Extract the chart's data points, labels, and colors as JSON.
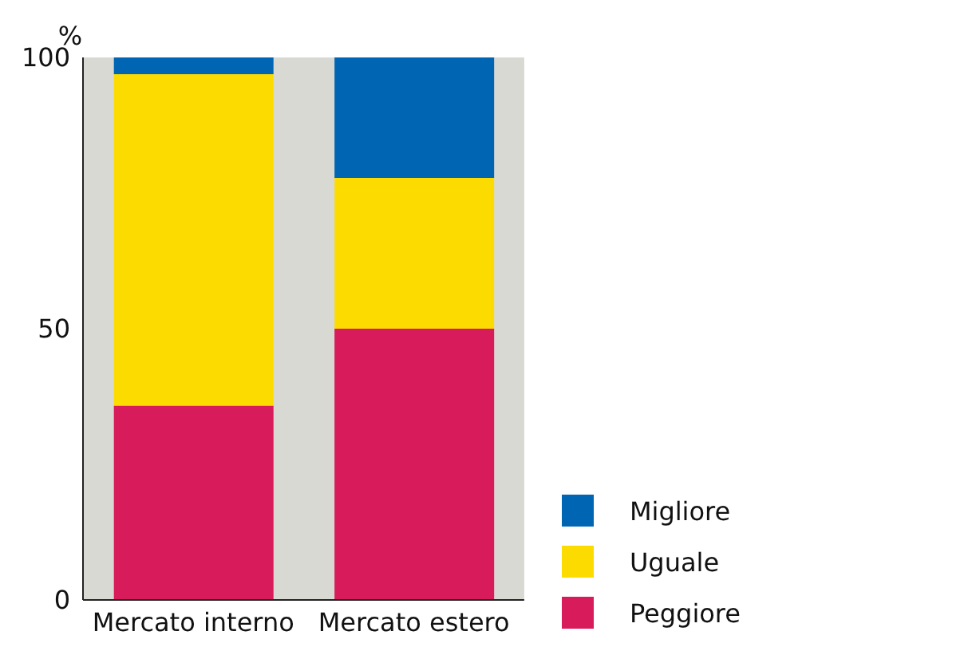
{
  "chart_data": {
    "type": "bar",
    "stacked": true,
    "ylabel": "%",
    "categories": [
      "Mercato interno",
      "Mercato estero"
    ],
    "series": [
      {
        "name": "Peggiore",
        "color": "#d81b5a",
        "values": [
          35.8,
          50
        ]
      },
      {
        "name": "Uguale",
        "color": "#fcdc00",
        "values": [
          61.1,
          27.8
        ]
      },
      {
        "name": "Migliore",
        "color": "#0066b3",
        "values": [
          3.1,
          22.2
        ]
      }
    ],
    "ylim": [
      0,
      100
    ],
    "yticks": [
      0,
      50,
      100
    ],
    "grid": false,
    "legend": "bottom right"
  }
}
